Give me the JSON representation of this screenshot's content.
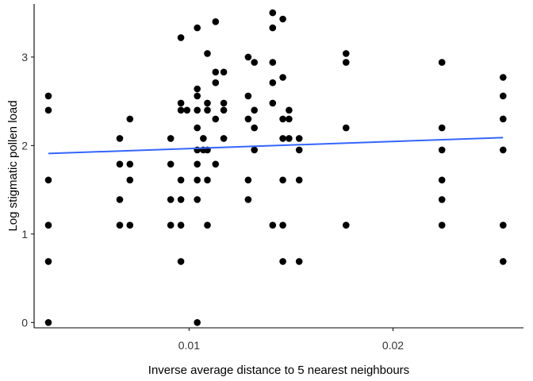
{
  "chart_data": {
    "type": "scatter",
    "xlabel": "Inverse average distance to 5 nearest neighbours",
    "ylabel": "Log stigmatic pollen load",
    "xlim": [
      0.0024,
      0.0264
    ],
    "ylim": [
      -0.06,
      3.6
    ],
    "x_ticks": [
      {
        "value": 0.01,
        "label": "0.01"
      },
      {
        "value": 0.02,
        "label": "0.02"
      }
    ],
    "y_ticks": [
      {
        "value": 0,
        "label": "0"
      },
      {
        "value": 1,
        "label": "1"
      },
      {
        "value": 2,
        "label": "2"
      },
      {
        "value": 3,
        "label": "3"
      }
    ],
    "grid": false,
    "points": [
      [
        0.0031,
        2.56
      ],
      [
        0.0031,
        2.4
      ],
      [
        0.0031,
        1.61
      ],
      [
        0.0031,
        1.1
      ],
      [
        0.0031,
        0.69
      ],
      [
        0.0031,
        0.0
      ],
      [
        0.0066,
        2.08
      ],
      [
        0.0066,
        1.79
      ],
      [
        0.0066,
        1.39
      ],
      [
        0.0066,
        1.1
      ],
      [
        0.0071,
        2.3
      ],
      [
        0.0071,
        1.79
      ],
      [
        0.0071,
        1.61
      ],
      [
        0.0071,
        1.1
      ],
      [
        0.0091,
        2.08
      ],
      [
        0.0091,
        1.79
      ],
      [
        0.0091,
        1.39
      ],
      [
        0.0091,
        1.1
      ],
      [
        0.0096,
        3.22
      ],
      [
        0.0096,
        2.48
      ],
      [
        0.0096,
        2.4
      ],
      [
        0.0096,
        1.61
      ],
      [
        0.0096,
        1.39
      ],
      [
        0.0096,
        1.1
      ],
      [
        0.0096,
        0.69
      ],
      [
        0.0099,
        2.4
      ],
      [
        0.0104,
        3.33
      ],
      [
        0.0104,
        2.64
      ],
      [
        0.0104,
        2.56
      ],
      [
        0.0104,
        2.4
      ],
      [
        0.0104,
        2.2
      ],
      [
        0.0104,
        1.95
      ],
      [
        0.0104,
        1.79
      ],
      [
        0.0104,
        1.61
      ],
      [
        0.0104,
        1.39
      ],
      [
        0.0104,
        0.0
      ],
      [
        0.0107,
        2.08
      ],
      [
        0.0107,
        1.95
      ],
      [
        0.0109,
        3.04
      ],
      [
        0.0109,
        2.48
      ],
      [
        0.0109,
        2.4
      ],
      [
        0.0109,
        1.95
      ],
      [
        0.0109,
        1.61
      ],
      [
        0.0109,
        1.1
      ],
      [
        0.0113,
        3.4
      ],
      [
        0.0113,
        2.83
      ],
      [
        0.0113,
        2.71
      ],
      [
        0.0113,
        2.3
      ],
      [
        0.0113,
        1.79
      ],
      [
        0.0117,
        2.83
      ],
      [
        0.0117,
        2.48
      ],
      [
        0.0117,
        2.4
      ],
      [
        0.0117,
        2.08
      ],
      [
        0.0129,
        3.0
      ],
      [
        0.0129,
        2.56
      ],
      [
        0.0129,
        2.3
      ],
      [
        0.0129,
        1.61
      ],
      [
        0.0129,
        1.39
      ],
      [
        0.0132,
        2.94
      ],
      [
        0.0132,
        2.4
      ],
      [
        0.0132,
        2.2
      ],
      [
        0.0132,
        1.95
      ],
      [
        0.0141,
        3.5
      ],
      [
        0.0141,
        3.33
      ],
      [
        0.0141,
        2.94
      ],
      [
        0.0141,
        2.71
      ],
      [
        0.0141,
        2.48
      ],
      [
        0.0141,
        1.1
      ],
      [
        0.0146,
        3.43
      ],
      [
        0.0146,
        2.77
      ],
      [
        0.0146,
        2.3
      ],
      [
        0.0146,
        2.08
      ],
      [
        0.0146,
        1.61
      ],
      [
        0.0146,
        1.1
      ],
      [
        0.0146,
        0.69
      ],
      [
        0.0149,
        2.4
      ],
      [
        0.0149,
        2.3
      ],
      [
        0.0149,
        2.08
      ],
      [
        0.0154,
        2.08
      ],
      [
        0.0154,
        1.95
      ],
      [
        0.0154,
        1.61
      ],
      [
        0.0154,
        0.69
      ],
      [
        0.0177,
        3.04
      ],
      [
        0.0177,
        2.94
      ],
      [
        0.0177,
        2.2
      ],
      [
        0.0177,
        1.1
      ],
      [
        0.0224,
        2.94
      ],
      [
        0.0224,
        2.2
      ],
      [
        0.0224,
        1.95
      ],
      [
        0.0224,
        1.61
      ],
      [
        0.0224,
        1.39
      ],
      [
        0.0224,
        1.1
      ],
      [
        0.0254,
        2.77
      ],
      [
        0.0254,
        2.56
      ],
      [
        0.0254,
        2.3
      ],
      [
        0.0254,
        1.95
      ],
      [
        0.0254,
        1.1
      ],
      [
        0.0254,
        0.69
      ]
    ],
    "trend": {
      "x": [
        0.0031,
        0.0254
      ],
      "y": [
        1.91,
        2.09
      ]
    },
    "colors": {
      "points": "#000000",
      "trend": "#3366ff",
      "axis": "#000000",
      "tick_text": "#333333"
    }
  }
}
